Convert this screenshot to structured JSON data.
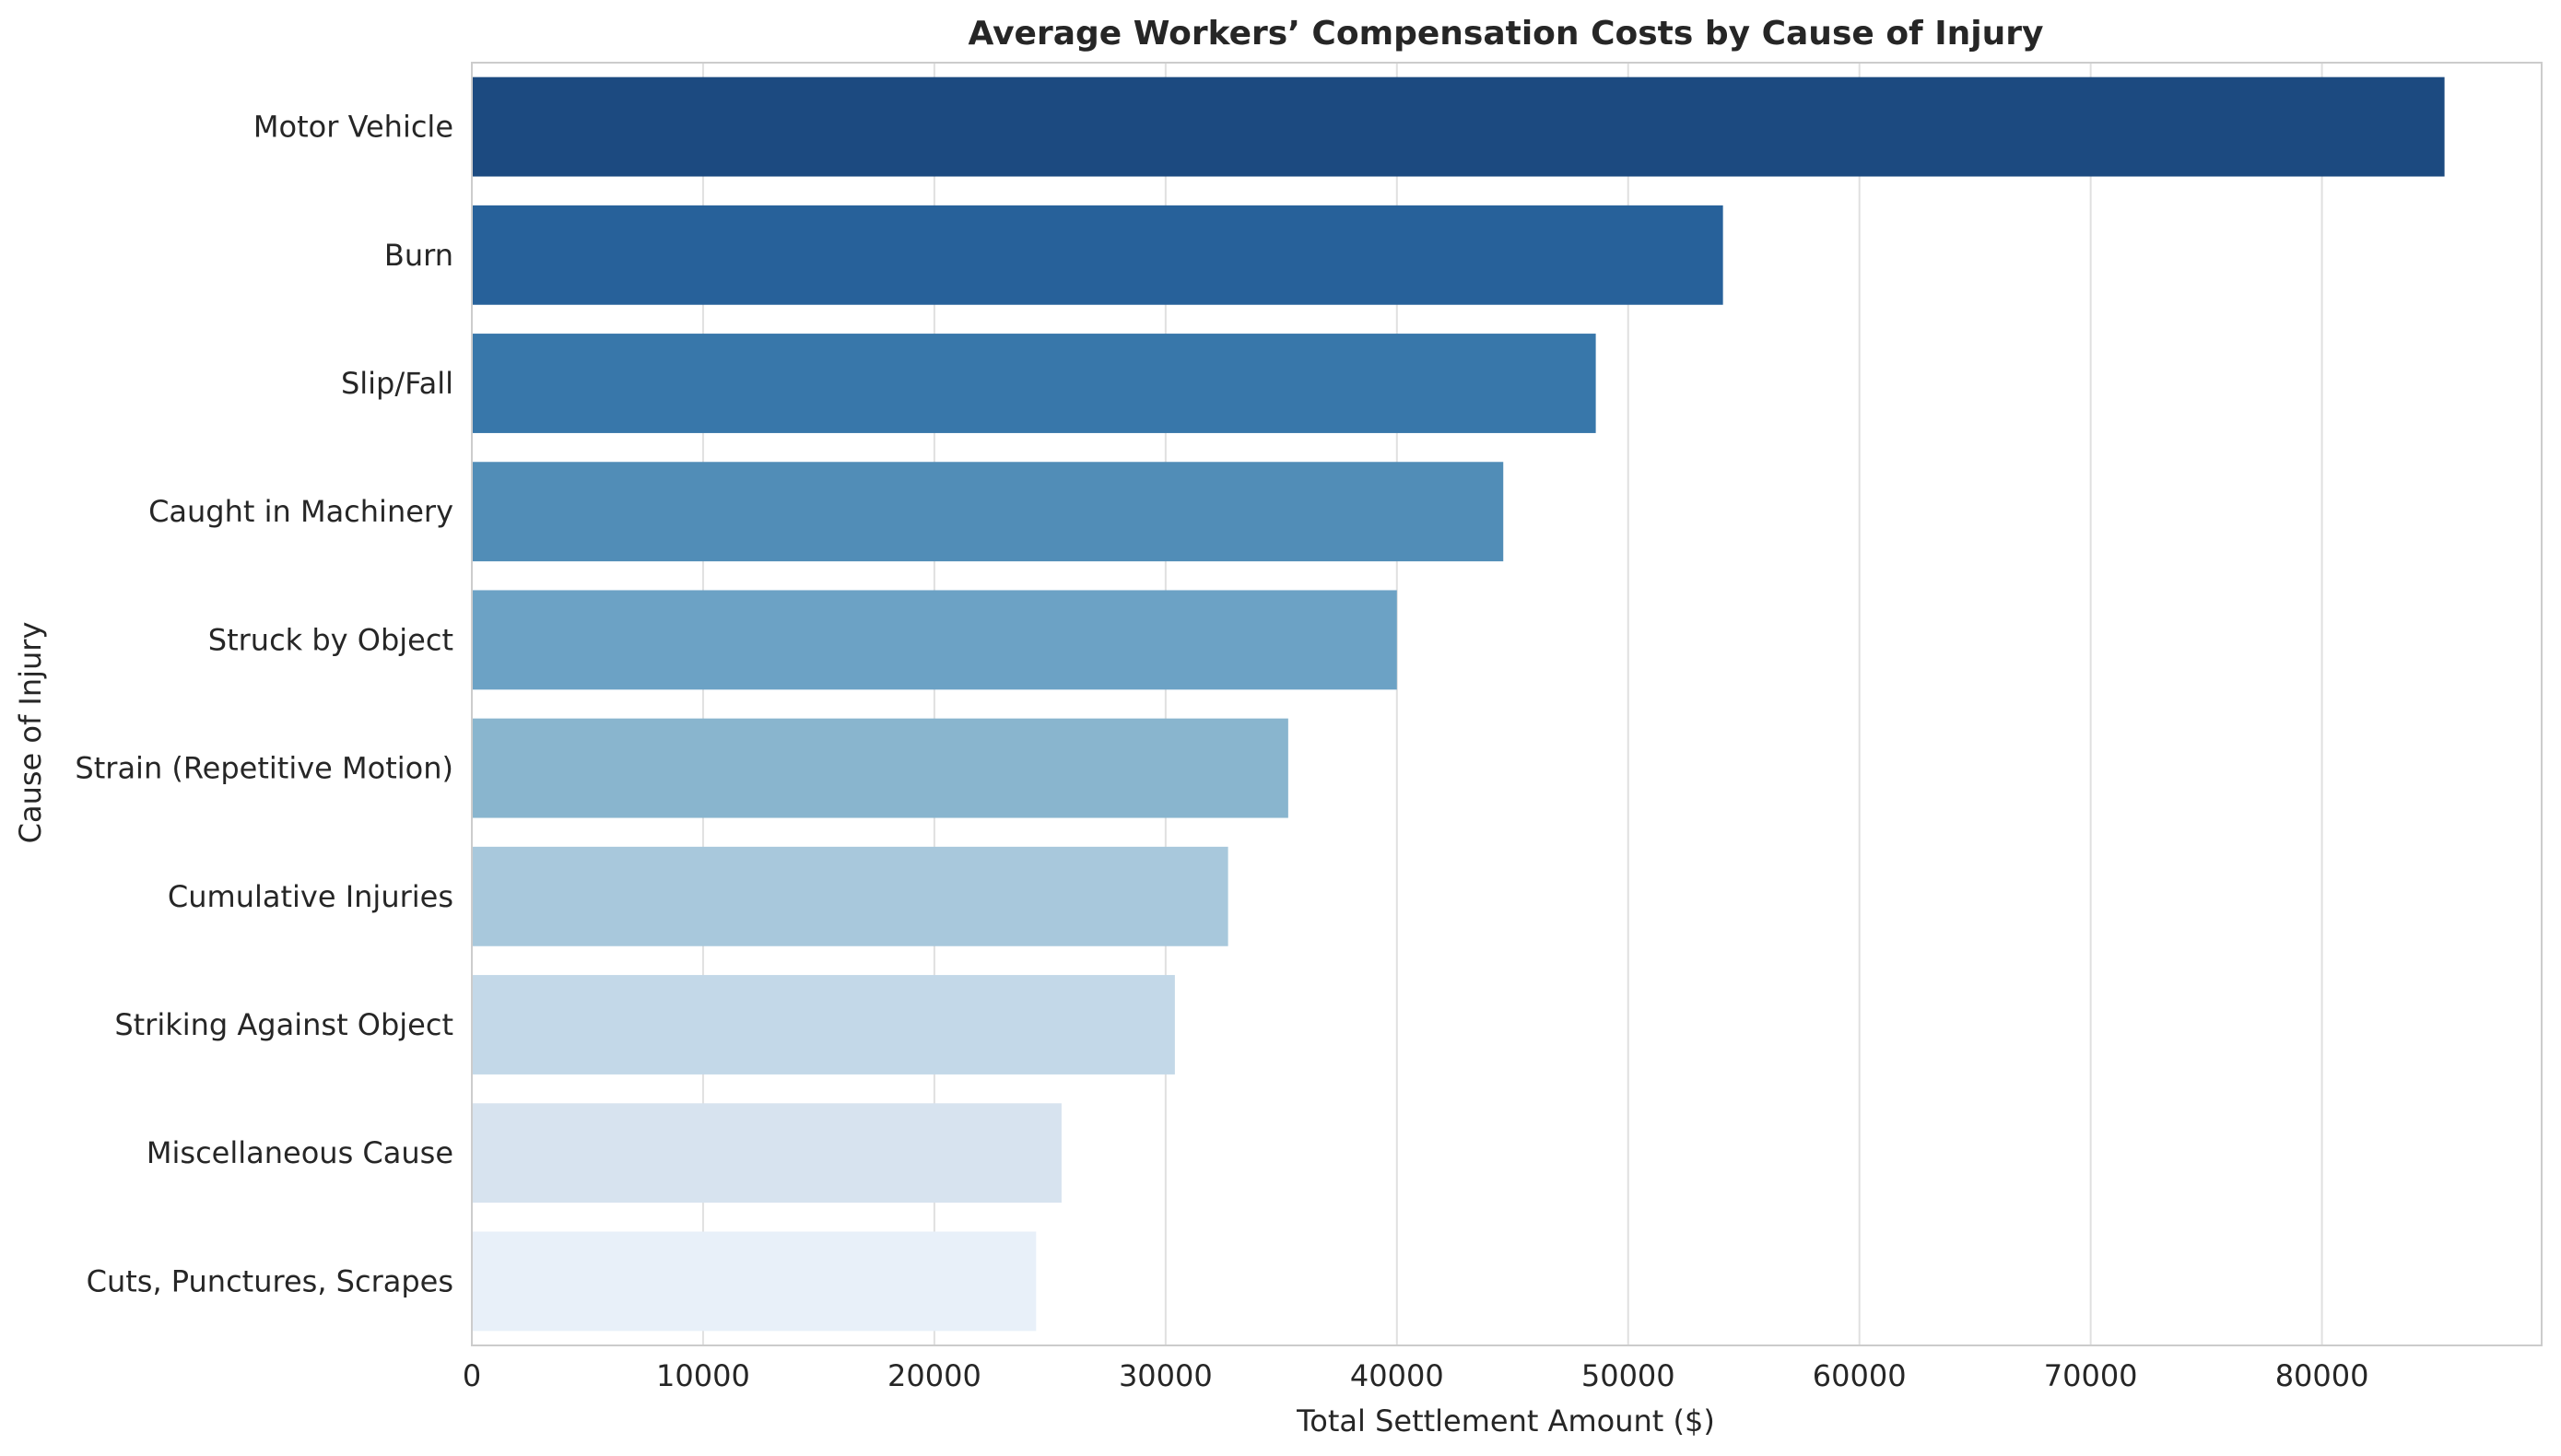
{
  "chart_data": {
    "type": "bar",
    "orientation": "horizontal",
    "title": "Average Workers’ Compensation Costs by Cause of Injury",
    "xlabel": "Total Settlement Amount ($)",
    "ylabel": "Cause of Injury",
    "xlim": [
      0,
      89500
    ],
    "xticks": [
      0,
      10000,
      20000,
      30000,
      40000,
      50000,
      60000,
      70000,
      80000
    ],
    "xtick_labels": [
      "0",
      "10000",
      "20000",
      "30000",
      "40000",
      "50000",
      "60000",
      "70000",
      "80000"
    ],
    "grid": true,
    "categories": [
      "Motor Vehicle",
      "Burn",
      "Slip/Fall",
      "Caught in Machinery",
      "Struck by Object",
      "Strain (Repetitive Motion)",
      "Cumulative Injuries",
      "Striking Against Object",
      "Miscellaneous Cause",
      "Cuts, Punctures, Scrapes"
    ],
    "values": [
      85300,
      54100,
      48600,
      44600,
      40000,
      35300,
      32700,
      30400,
      25500,
      24400
    ],
    "colors": [
      "#1c4a80",
      "#27619a",
      "#3877aa",
      "#518db7",
      "#6ca2c5",
      "#89b5ce",
      "#a8c8dc",
      "#c3d8e8",
      "#d7e3ef",
      "#e8f0f9"
    ]
  }
}
